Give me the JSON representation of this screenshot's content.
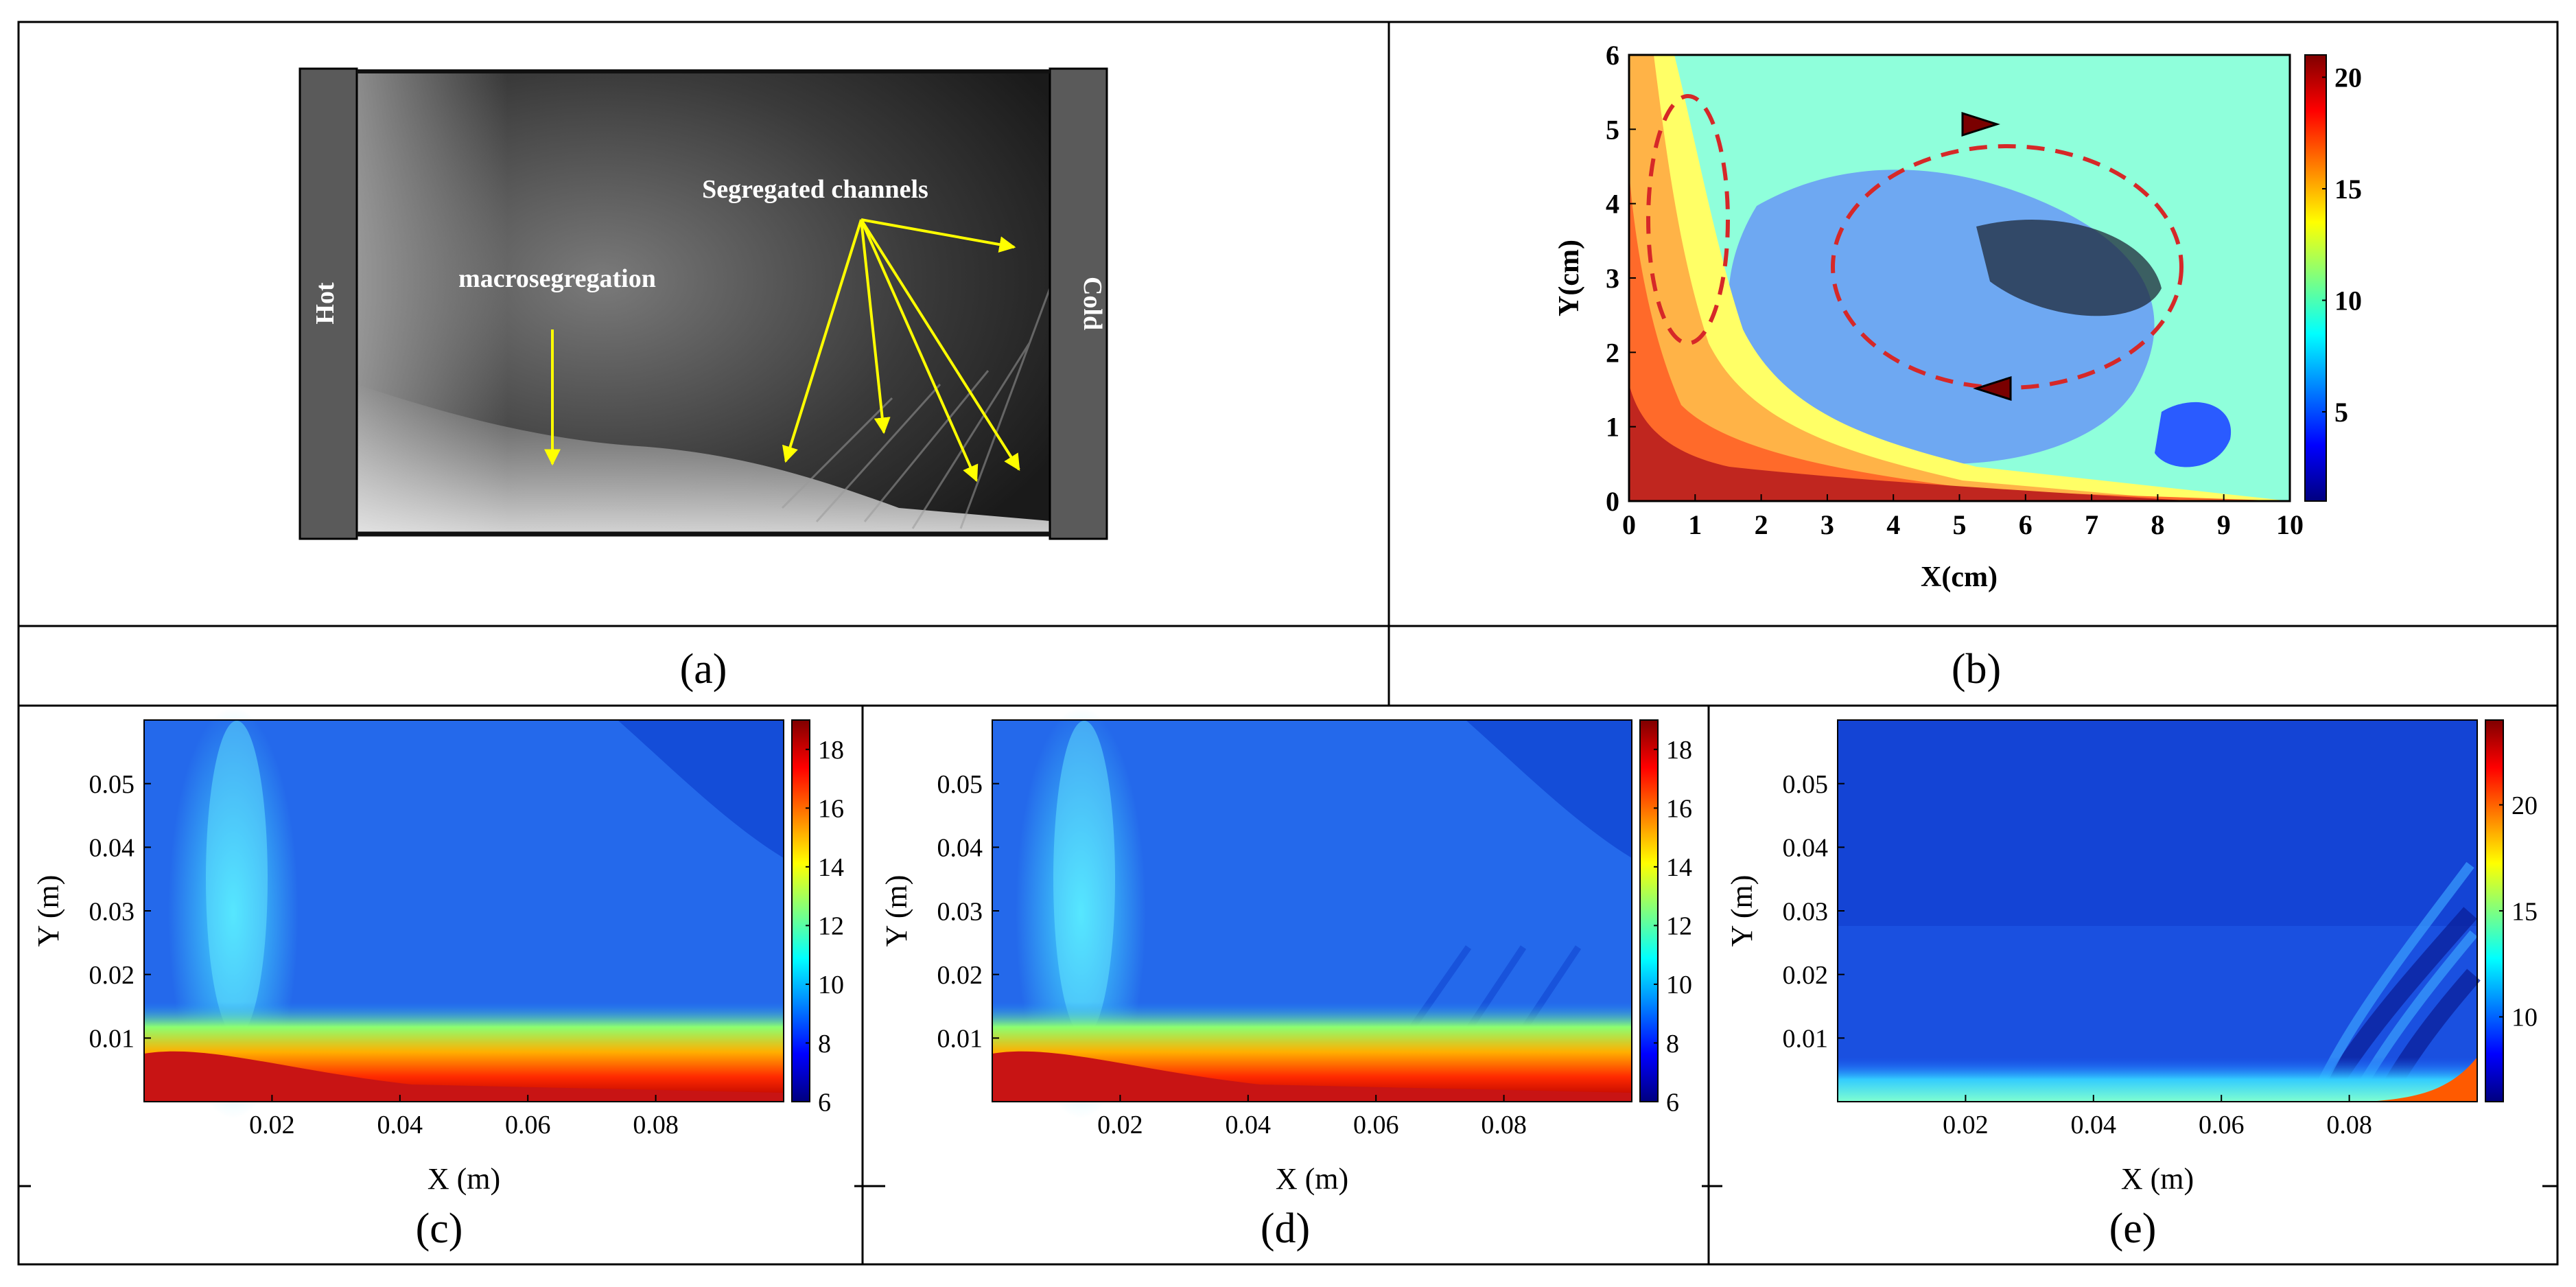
{
  "panels": {
    "a": {
      "label": "(a)",
      "hot_label": "Hot",
      "cold_label": "Cold",
      "annotation_macro": "macrosegregation",
      "annotation_channels": "Segregated channels"
    },
    "b": {
      "label": "(b)"
    },
    "c": {
      "label": "(c)"
    },
    "d": {
      "label": "(d)"
    },
    "e": {
      "label": "(e)"
    }
  },
  "colors": {
    "hot_bar": "#5a5a5a",
    "arrow_yellow": "#ffff00",
    "loop_red": "#d62828",
    "jet": [
      "#00007f",
      "#0000ff",
      "#007fff",
      "#00ffff",
      "#7fff7f",
      "#ffff00",
      "#ff7f00",
      "#ff0000",
      "#7f0000"
    ]
  },
  "chart_data": [
    {
      "id": "b",
      "type": "heatmap",
      "xlabel": "X(cm)",
      "ylabel": "Y(cm)",
      "xlim": [
        0,
        10
      ],
      "ylim": [
        0,
        6
      ],
      "xticks": [
        "0",
        "1",
        "2",
        "3",
        "4",
        "5",
        "6",
        "7",
        "8",
        "9",
        "10"
      ],
      "yticks": [
        "0",
        "1",
        "2",
        "3",
        "4",
        "5",
        "6"
      ],
      "colorbar": {
        "min": 1,
        "max": 21,
        "ticks": [
          "5",
          "10",
          "15",
          "20"
        ]
      }
    },
    {
      "id": "c",
      "type": "heatmap",
      "xlabel": "X (m)",
      "ylabel": "Y (m)",
      "xlim": [
        0,
        0.1
      ],
      "ylim": [
        0,
        0.06
      ],
      "xticks": [
        "0.02",
        "0.04",
        "0.06",
        "0.08"
      ],
      "yticks": [
        "0.01",
        "0.02",
        "0.03",
        "0.04",
        "0.05"
      ],
      "colorbar": {
        "min": 6,
        "max": 19,
        "ticks": [
          "6",
          "8",
          "10",
          "12",
          "14",
          "16",
          "18"
        ]
      }
    },
    {
      "id": "d",
      "type": "heatmap",
      "xlabel": "X (m)",
      "ylabel": "Y (m)",
      "xlim": [
        0,
        0.1
      ],
      "ylim": [
        0,
        0.06
      ],
      "xticks": [
        "0.02",
        "0.04",
        "0.06",
        "0.08"
      ],
      "yticks": [
        "0.01",
        "0.02",
        "0.03",
        "0.04",
        "0.05"
      ],
      "colorbar": {
        "min": 6,
        "max": 19,
        "ticks": [
          "6",
          "8",
          "10",
          "12",
          "14",
          "16",
          "18"
        ]
      }
    },
    {
      "id": "e",
      "type": "heatmap",
      "xlabel": "X (m)",
      "ylabel": "Y (m)",
      "xlim": [
        0,
        0.1
      ],
      "ylim": [
        0,
        0.06
      ],
      "xticks": [
        "0.02",
        "0.04",
        "0.06",
        "0.08"
      ],
      "yticks": [
        "0.01",
        "0.02",
        "0.03",
        "0.04",
        "0.05"
      ],
      "colorbar": {
        "min": 6,
        "max": 24,
        "ticks": [
          "10",
          "15",
          "20"
        ]
      }
    }
  ]
}
